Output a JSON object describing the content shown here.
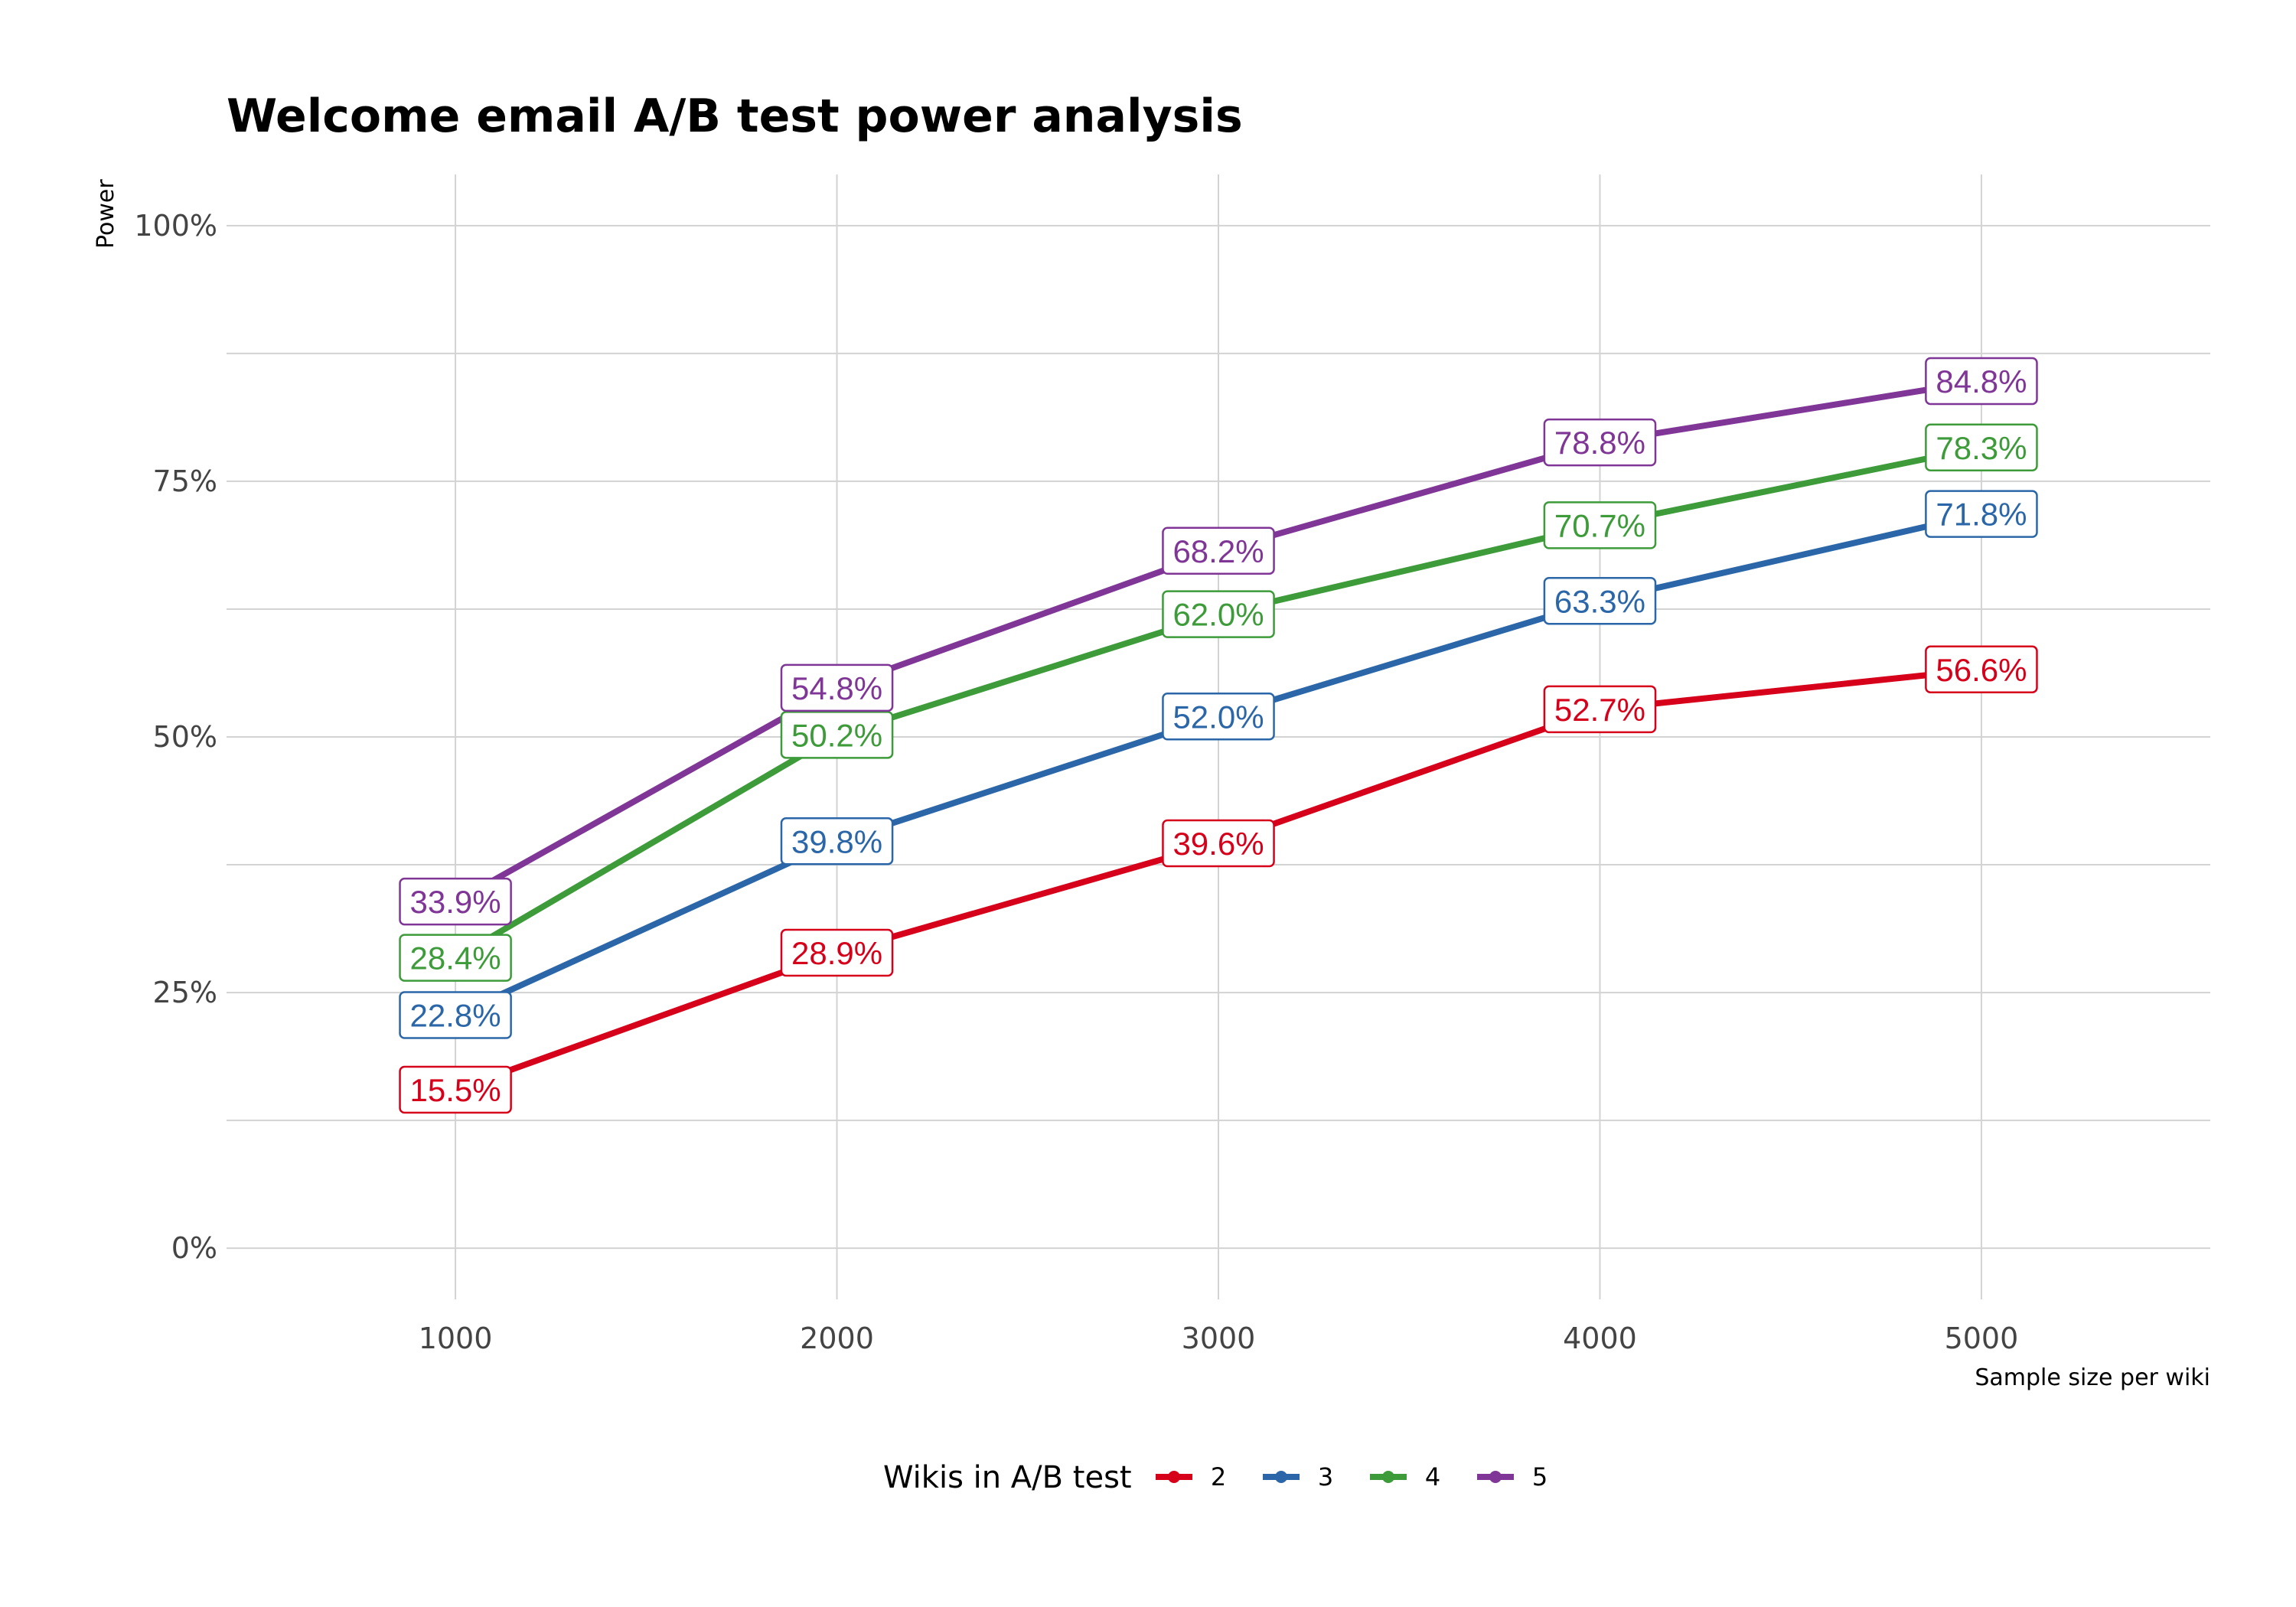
{
  "chart_data": {
    "type": "line",
    "title": "Welcome email A/B test power analysis",
    "xlabel": "Sample size per wiki",
    "ylabel": "Power",
    "x": [
      1000,
      2000,
      3000,
      4000,
      5000
    ],
    "x_tick_labels": [
      "1000",
      "2000",
      "3000",
      "4000",
      "5000"
    ],
    "xlim": [
      400,
      5600
    ],
    "ylim": [
      -5,
      105
    ],
    "y_ticks": [
      0,
      25,
      50,
      75,
      100
    ],
    "y_tick_labels": [
      "0%",
      "25%",
      "50%",
      "75%",
      "100%"
    ],
    "grid": true,
    "legend": {
      "title": "Wikis in A/B test",
      "position": "bottom"
    },
    "series": [
      {
        "name": "2",
        "color": "#d7001a",
        "values": [
          15.5,
          28.9,
          39.6,
          52.7,
          56.6
        ],
        "labels": [
          "15.5%",
          "28.9%",
          "39.6%",
          "52.7%",
          "56.6%"
        ]
      },
      {
        "name": "3",
        "color": "#2b67a8",
        "values": [
          22.8,
          39.8,
          52.0,
          63.3,
          71.8
        ],
        "labels": [
          "22.8%",
          "39.8%",
          "52.0%",
          "63.3%",
          "71.8%"
        ]
      },
      {
        "name": "4",
        "color": "#3d9b3a",
        "values": [
          28.4,
          50.2,
          62.0,
          70.7,
          78.3
        ],
        "labels": [
          "28.4%",
          "50.2%",
          "62.0%",
          "70.7%",
          "78.3%"
        ]
      },
      {
        "name": "5",
        "color": "#7f3696",
        "values": [
          33.9,
          54.8,
          68.2,
          78.8,
          84.8
        ],
        "labels": [
          "33.9%",
          "54.8%",
          "68.2%",
          "78.8%",
          "84.8%"
        ]
      }
    ]
  }
}
